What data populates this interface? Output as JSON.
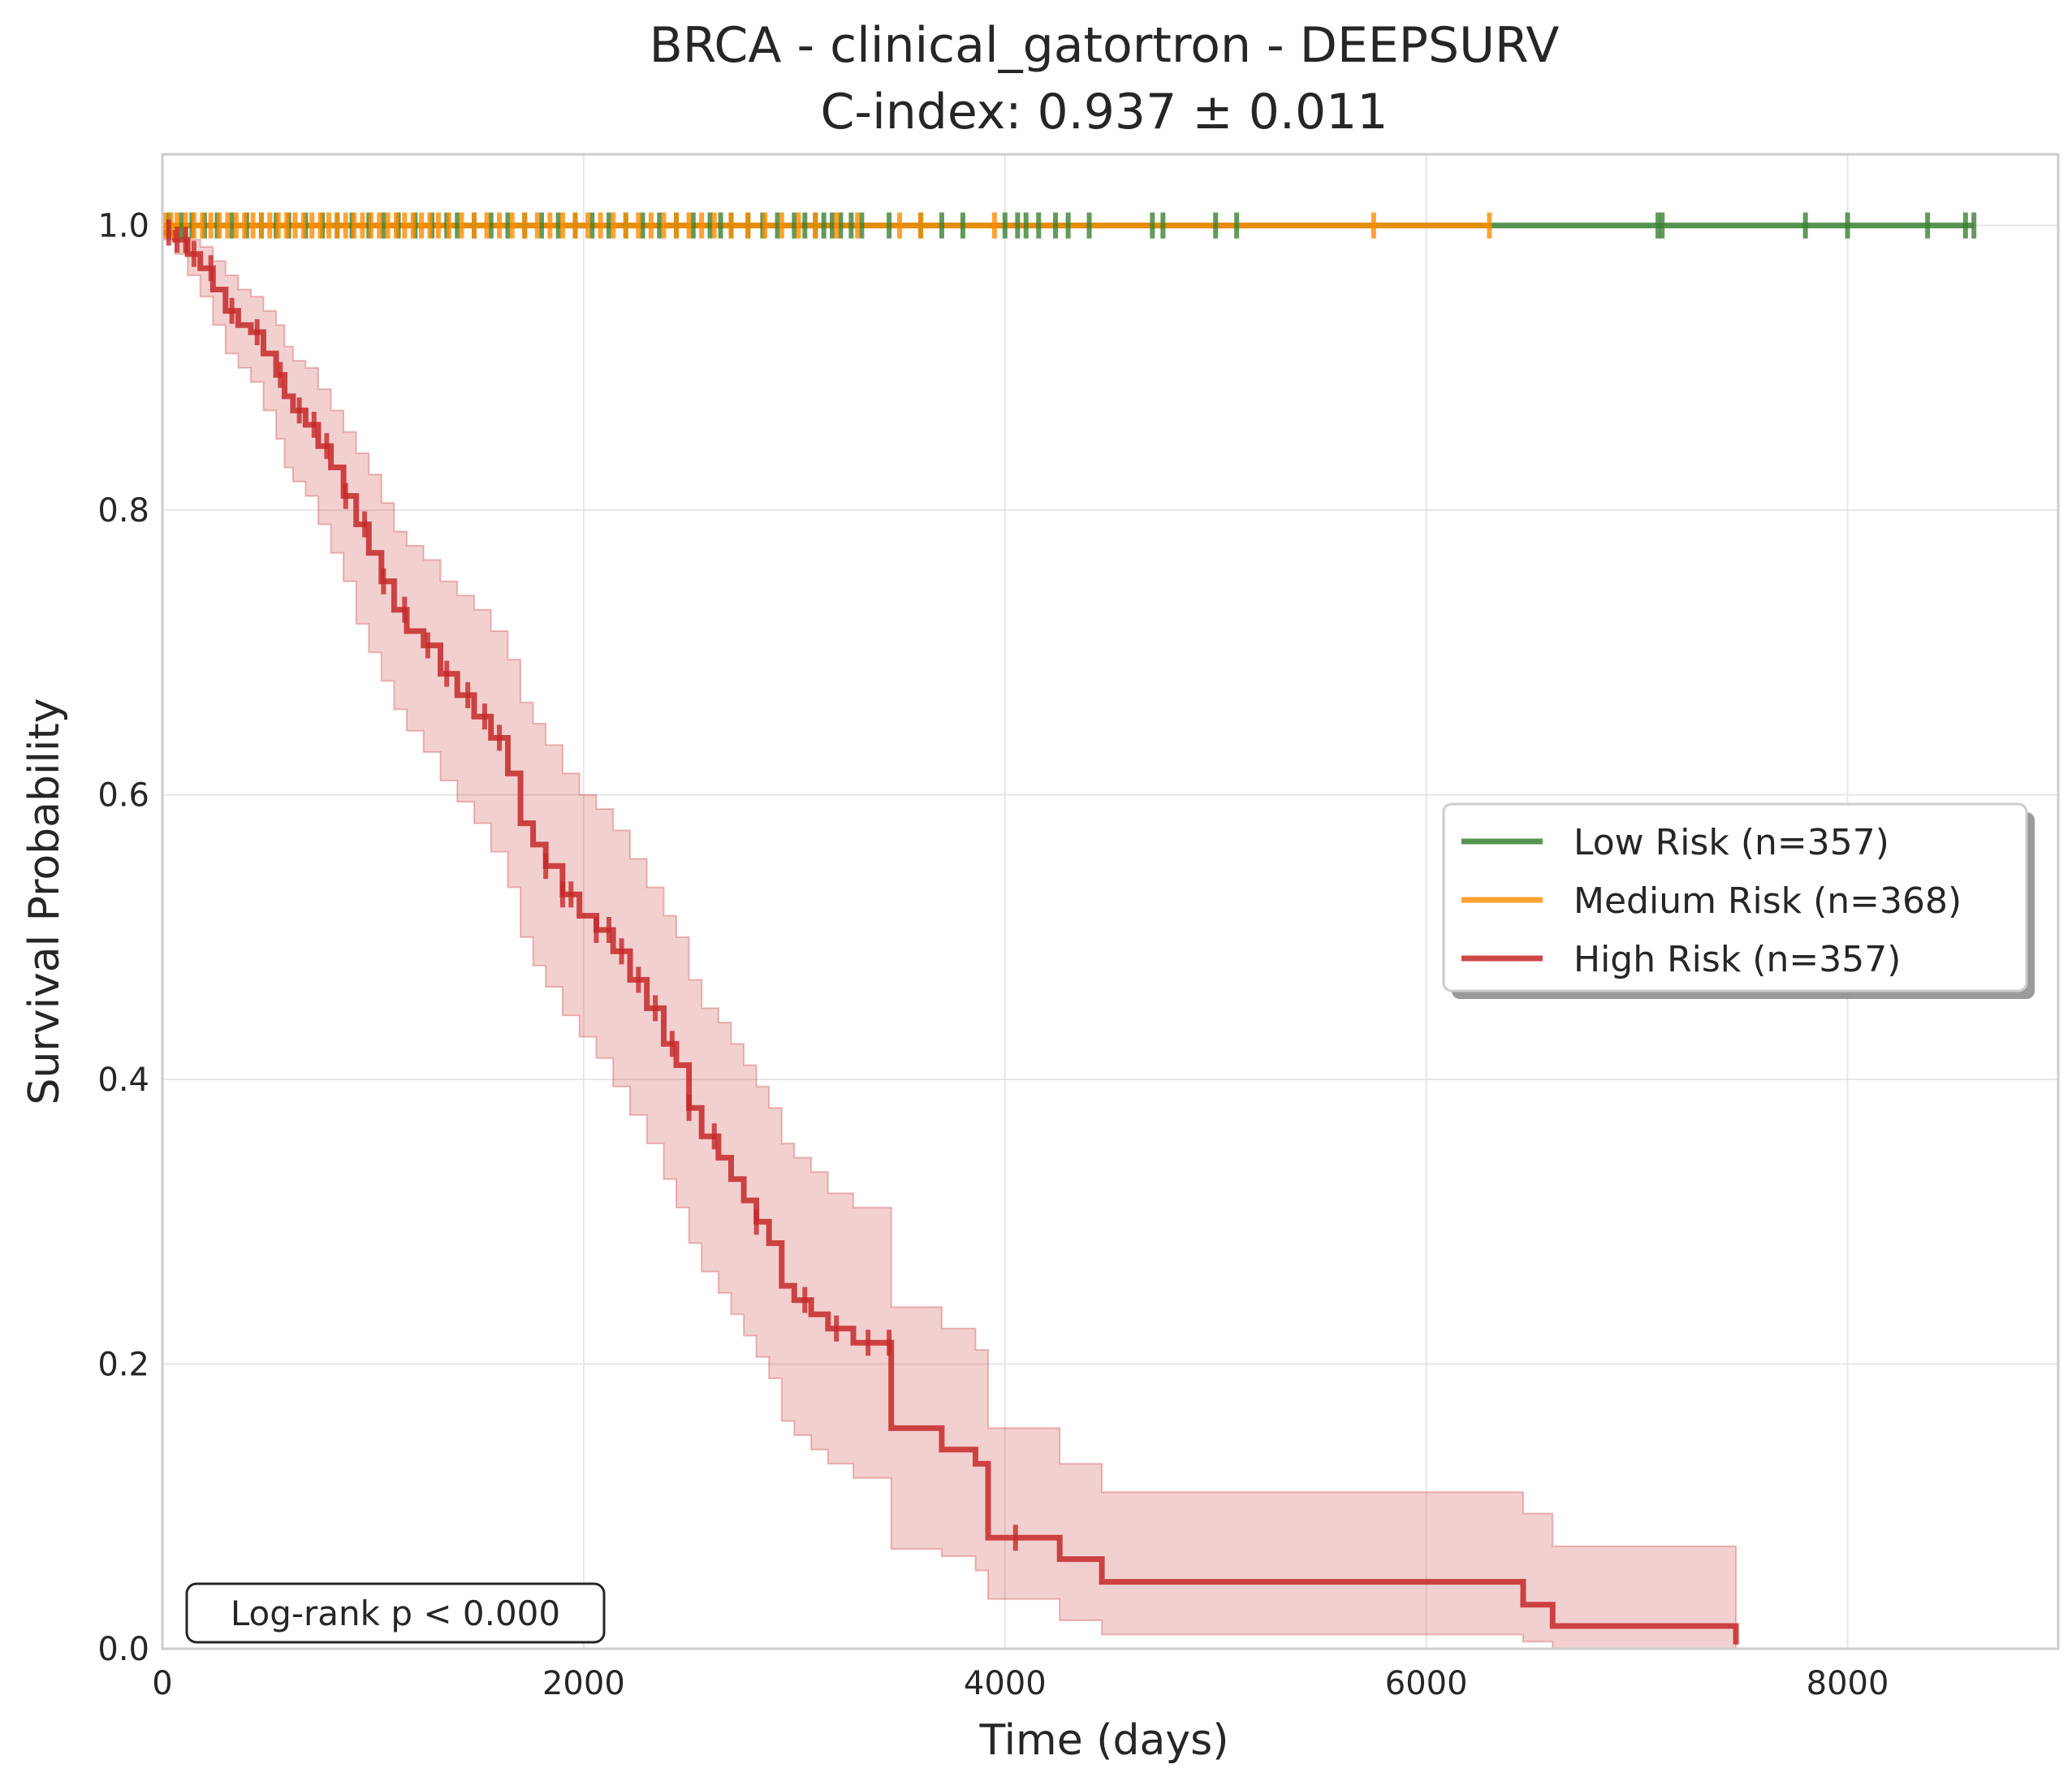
{
  "chart_data": {
    "type": "line",
    "title": "BRCA - clinical_gatortron - DEEPSURV",
    "subtitle": "C-index: 0.937 ± 0.011",
    "xlabel": "Time (days)",
    "ylabel": "Survival Probability",
    "xlim": [
      0,
      9000
    ],
    "ylim": [
      0.0,
      1.05
    ],
    "xticks": [
      0,
      2000,
      4000,
      6000,
      8000
    ],
    "xtick_labels": [
      "0",
      "2000",
      "4000",
      "6000",
      "8000"
    ],
    "yticks": [
      0.0,
      0.2,
      0.4,
      0.6,
      0.8,
      1.0
    ],
    "ytick_labels": [
      "0.0",
      "0.2",
      "0.4",
      "0.6",
      "0.8",
      "1.0"
    ],
    "grid": true,
    "legend_position": "center-right",
    "annotation": "Log-rank p < 0.000",
    "series": [
      {
        "name": "Low Risk (n=357)",
        "color": "#3b8132",
        "x": [
          0,
          8600
        ],
        "y": [
          1.0,
          1.0
        ],
        "censor_x": [
          30,
          90,
          140,
          200,
          260,
          330,
          400,
          470,
          540,
          600,
          680,
          760,
          830,
          900,
          980,
          1050,
          1120,
          1200,
          1280,
          1350,
          1400,
          1480,
          1560,
          1640,
          1720,
          1800,
          1880,
          1960,
          2040,
          2120,
          2200,
          2280,
          2360,
          2440,
          2520,
          2600,
          2650,
          2700,
          2780,
          2850,
          2920,
          3000,
          3050,
          3100,
          3140,
          3180,
          3220,
          3270,
          3320,
          3450,
          3600,
          3700,
          3800,
          4000,
          4060,
          4100,
          4160,
          4240,
          4300,
          4400,
          4700,
          4750,
          5000,
          5100,
          7100,
          7120,
          7800,
          8000,
          8380,
          8560,
          8600
        ]
      },
      {
        "name": "Medium Risk (n=368)",
        "color": "#ff8c00",
        "x": [
          0,
          6300
        ],
        "y": [
          1.0,
          1.0
        ],
        "censor_x": [
          10,
          40,
          70,
          110,
          150,
          190,
          230,
          270,
          310,
          350,
          390,
          430,
          470,
          510,
          550,
          590,
          630,
          670,
          710,
          750,
          790,
          830,
          870,
          910,
          950,
          990,
          1030,
          1070,
          1110,
          1150,
          1190,
          1230,
          1270,
          1310,
          1360,
          1420,
          1480,
          1540,
          1600,
          1660,
          1720,
          1780,
          1840,
          1900,
          1960,
          2020,
          2080,
          2140,
          2200,
          2260,
          2320,
          2380,
          2440,
          2500,
          2560,
          2620,
          2700,
          2780,
          2860,
          2940,
          3020,
          3100,
          3200,
          3300,
          3500,
          3600,
          3950,
          5750,
          6300
        ]
      },
      {
        "name": "High Risk (n=357)",
        "color": "#c62828",
        "x": [
          0,
          60,
          120,
          180,
          240,
          300,
          360,
          420,
          480,
          540,
          580,
          620,
          680,
          740,
          800,
          860,
          920,
          980,
          1040,
          1100,
          1160,
          1240,
          1320,
          1400,
          1480,
          1560,
          1640,
          1700,
          1760,
          1820,
          1900,
          1980,
          2060,
          2140,
          2220,
          2300,
          2380,
          2440,
          2500,
          2560,
          2640,
          2700,
          2760,
          2820,
          2880,
          2940,
          3000,
          3080,
          3160,
          3280,
          3460,
          3520,
          3700,
          3860,
          3920,
          4000,
          4260,
          4460,
          6460,
          6600,
          7460,
          7470
        ],
        "y": [
          0.995,
          0.99,
          0.98,
          0.97,
          0.955,
          0.94,
          0.93,
          0.925,
          0.91,
          0.895,
          0.88,
          0.87,
          0.86,
          0.845,
          0.83,
          0.81,
          0.79,
          0.77,
          0.75,
          0.73,
          0.715,
          0.705,
          0.685,
          0.67,
          0.655,
          0.64,
          0.615,
          0.58,
          0.565,
          0.55,
          0.53,
          0.515,
          0.505,
          0.49,
          0.47,
          0.45,
          0.425,
          0.41,
          0.38,
          0.36,
          0.345,
          0.33,
          0.315,
          0.3,
          0.285,
          0.255,
          0.245,
          0.235,
          0.225,
          0.215,
          0.155,
          0.155,
          0.14,
          0.13,
          0.078,
          0.078,
          0.063,
          0.047,
          0.031,
          0.016,
          0.016,
          0.003
        ],
        "ci_lower": [
          0.99,
          0.98,
          0.965,
          0.95,
          0.93,
          0.91,
          0.9,
          0.89,
          0.87,
          0.85,
          0.83,
          0.82,
          0.81,
          0.79,
          0.77,
          0.75,
          0.72,
          0.7,
          0.68,
          0.66,
          0.645,
          0.63,
          0.61,
          0.595,
          0.58,
          0.56,
          0.535,
          0.5,
          0.48,
          0.465,
          0.445,
          0.43,
          0.415,
          0.395,
          0.375,
          0.355,
          0.33,
          0.31,
          0.285,
          0.265,
          0.25,
          0.235,
          0.22,
          0.205,
          0.19,
          0.16,
          0.15,
          0.14,
          0.13,
          0.12,
          0.07,
          0.07,
          0.065,
          0.055,
          0.035,
          0.035,
          0.02,
          0.01,
          0.005,
          0.0,
          0.0,
          0.0
        ],
        "ci_upper": [
          1.0,
          0.998,
          0.99,
          0.985,
          0.975,
          0.965,
          0.955,
          0.95,
          0.94,
          0.93,
          0.915,
          0.905,
          0.9,
          0.885,
          0.87,
          0.855,
          0.84,
          0.825,
          0.805,
          0.785,
          0.775,
          0.765,
          0.75,
          0.74,
          0.73,
          0.715,
          0.695,
          0.665,
          0.65,
          0.635,
          0.615,
          0.6,
          0.59,
          0.575,
          0.555,
          0.535,
          0.515,
          0.5,
          0.47,
          0.45,
          0.44,
          0.425,
          0.41,
          0.395,
          0.38,
          0.355,
          0.345,
          0.335,
          0.32,
          0.31,
          0.24,
          0.24,
          0.225,
          0.21,
          0.155,
          0.155,
          0.13,
          0.11,
          0.095,
          0.072,
          0.072,
          0.072
        ],
        "censor_x": [
          30,
          70,
          110,
          150,
          230,
          330,
          450,
          560,
          650,
          720,
          780,
          870,
          960,
          1050,
          1150,
          1260,
          1350,
          1450,
          1530,
          1600,
          1820,
          1900,
          1940,
          2060,
          2120,
          2180,
          2260,
          2340,
          2420,
          2500,
          2620,
          2820,
          3050,
          3200,
          3350,
          3450,
          4050
        ]
      }
    ]
  }
}
